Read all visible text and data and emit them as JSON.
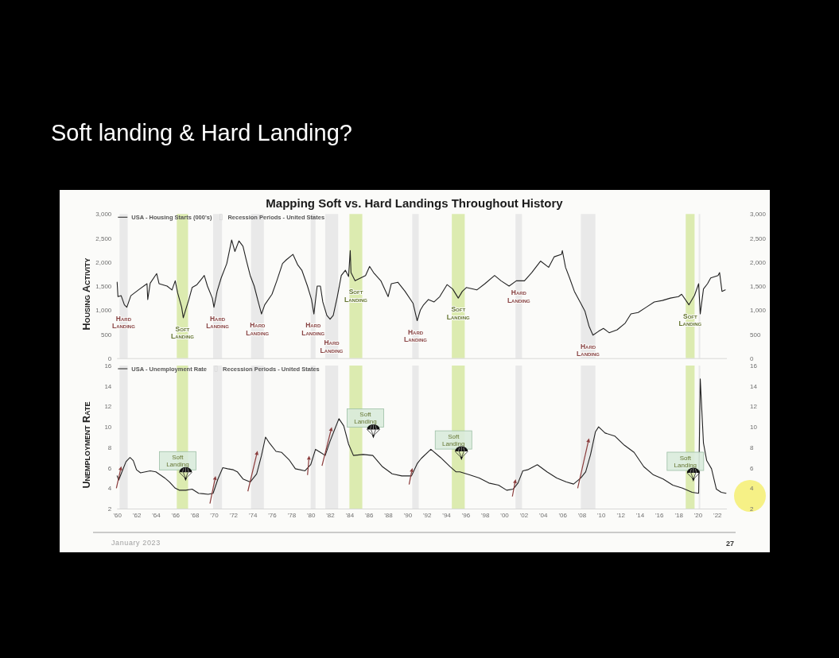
{
  "chart_data": [
    {
      "type": "line",
      "title": "Soft landing & Hard Landing?",
      "subtitle": "Mapping Soft vs. Hard Landings Throughout History",
      "ylabel": "Housing Activity",
      "x": [
        "1960-01",
        "1960-02",
        "1960-06",
        "1960-10",
        "1961-01",
        "1961-06",
        "1962-05",
        "1963-02",
        "1963-03",
        "1963-06",
        "1964-02",
        "1964-05",
        "1965-03",
        "1965-09",
        "1966-01",
        "1966-04",
        "1966-09",
        "1966-11",
        "1967-03",
        "1967-06",
        "1967-10",
        "1968-04",
        "1969-01",
        "1969-05",
        "1969-11",
        "1970-01",
        "1970-05",
        "1970-10",
        "1971-05",
        "1971-11",
        "1972-03",
        "1972-08",
        "1973-01",
        "1973-05",
        "1973-10",
        "1974-03",
        "1974-08",
        "1974-12",
        "1975-04",
        "1976-01",
        "1976-07",
        "1977-02",
        "1977-07",
        "1978-03",
        "1978-09",
        "1979-02",
        "1979-09",
        "1980-02",
        "1980-05",
        "1980-09",
        "1981-01",
        "1981-04",
        "1981-09",
        "1982-01",
        "1982-05",
        "1982-10",
        "1983-03",
        "1983-08",
        "1983-12",
        "1984-02",
        "1984-03",
        "1984-08",
        "1985-03",
        "1985-09",
        "1986-02",
        "1986-07",
        "1987-04",
        "1988-01",
        "1988-05",
        "1989-01",
        "1989-10",
        "1990-08",
        "1991-01",
        "1991-05",
        "1991-09",
        "1992-03",
        "1992-10",
        "1993-05",
        "1994-02",
        "1994-09",
        "1995-04",
        "1995-09",
        "1996-02",
        "1997-03",
        "1998-01",
        "1999-01",
        "1999-09",
        "2000-07",
        "2001-04",
        "2002-02",
        "2002-11",
        "2003-10",
        "2004-08",
        "2005-03",
        "2005-12",
        "2006-01",
        "2006-05",
        "2006-10",
        "2007-04",
        "2007-11",
        "2008-05",
        "2008-10",
        "2009-03",
        "2009-10",
        "2010-04",
        "2010-11",
        "2011-09",
        "2012-07",
        "2013-02",
        "2013-11",
        "2014-09",
        "2015-07",
        "2016-05",
        "2017-03",
        "2018-01",
        "2018-05",
        "2019-02",
        "2019-09",
        "2020-02",
        "2020-04",
        "2020-08",
        "2021-01",
        "2021-05",
        "2022-02",
        "2022-04",
        "2022-07",
        "2022-11"
      ],
      "series": [
        {
          "name": "USA - Housing Starts (000's)",
          "color": "#222222",
          "values": [
            1580,
            1280,
            1300,
            1110,
            1060,
            1300,
            1440,
            1550,
            1220,
            1560,
            1760,
            1550,
            1500,
            1420,
            1610,
            1360,
            1060,
            840,
            1060,
            1220,
            1470,
            1530,
            1720,
            1500,
            1250,
            1060,
            1390,
            1670,
            1970,
            2460,
            2220,
            2440,
            2330,
            2050,
            1720,
            1500,
            1170,
            920,
            1110,
            1330,
            1610,
            1970,
            2050,
            2160,
            1940,
            1830,
            1500,
            1220,
            920,
            1500,
            1500,
            1170,
            890,
            810,
            890,
            1280,
            1720,
            1830,
            1700,
            2240,
            1780,
            1610,
            1670,
            1720,
            1910,
            1780,
            1610,
            1280,
            1550,
            1580,
            1390,
            1140,
            780,
            1000,
            1110,
            1220,
            1170,
            1280,
            1530,
            1440,
            1250,
            1390,
            1470,
            1420,
            1550,
            1720,
            1610,
            1500,
            1610,
            1610,
            1780,
            2020,
            1890,
            2110,
            2160,
            2240,
            1890,
            1670,
            1390,
            1170,
            980,
            670,
            480,
            560,
            620,
            530,
            590,
            730,
            920,
            950,
            1060,
            1170,
            1200,
            1250,
            1280,
            1330,
            1110,
            1310,
            1550,
            920,
            1440,
            1550,
            1670,
            1720,
            1780,
            1390,
            1420
          ]
        }
      ],
      "xlim": [
        "1960-01",
        "2023-01"
      ],
      "ylim": [
        0,
        3000
      ],
      "yticks": [
        0,
        500,
        {
          "value": 1000,
          "label": "1,000"
        },
        {
          "value": 1500,
          "label": "1,500"
        },
        {
          "value": 2000,
          "label": "2,000"
        },
        {
          "value": 2500,
          "label": "2,500"
        },
        {
          "value": 3000,
          "label": "3,000"
        }
      ],
      "y2lim": [
        0,
        3000
      ],
      "y2ticks": [
        0,
        500,
        {
          "value": 1000,
          "label": "1,000"
        },
        {
          "value": 1500,
          "label": "1,500"
        },
        {
          "value": 2000,
          "label": "2,000"
        },
        {
          "value": 2500,
          "label": "2,500"
        },
        {
          "value": 3000,
          "label": "3,000"
        }
      ],
      "tick_labels": "y",
      "legend": "top left",
      "bands": [
        {
          "axis": "x",
          "from": "1960-04",
          "to": "1961-02",
          "color": "#e9e9e9",
          "label": "Hard Landing"
        },
        {
          "axis": "x",
          "from": "1966-03",
          "to": "1967-05",
          "color": "#dcebb0",
          "label": "Soft Landing"
        },
        {
          "axis": "x",
          "from": "1969-12",
          "to": "1970-11",
          "color": "#e9e9e9",
          "label": "Hard Landing"
        },
        {
          "axis": "x",
          "from": "1973-11",
          "to": "1975-03",
          "color": "#e9e9e9",
          "label": "Hard Landing"
        },
        {
          "axis": "x",
          "from": "1980-01",
          "to": "1980-07",
          "color": "#e9e9e9",
          "label": "Hard Landing"
        },
        {
          "axis": "x",
          "from": "1981-07",
          "to": "1982-11",
          "color": "#e9e9e9",
          "label": "Hard Landing"
        },
        {
          "axis": "x",
          "from": "1984-01",
          "to": "1985-05",
          "color": "#dcebb0",
          "label": "Soft Landing"
        },
        {
          "axis": "x",
          "from": "1990-07",
          "to": "1991-03",
          "color": "#e9e9e9",
          "label": "Hard Landing"
        },
        {
          "axis": "x",
          "from": "1994-08",
          "to": "1995-12",
          "color": "#dcebb0",
          "label": "Soft Landing"
        },
        {
          "axis": "x",
          "from": "2001-03",
          "to": "2001-11",
          "color": "#e9e9e9",
          "label": "Hard Landing"
        },
        {
          "axis": "x",
          "from": "2007-12",
          "to": "2009-06",
          "color": "#e9e9e9",
          "label": "Hard Landing"
        },
        {
          "axis": "x",
          "from": "2018-10",
          "to": "2019-09",
          "color": "#dcebb0",
          "label": "Soft Landing"
        },
        {
          "axis": "x",
          "from": "2020-02",
          "to": "2020-04",
          "color": "#e9e9e9"
        }
      ],
      "annotations": [
        "Recession Periods - United States"
      ]
    },
    {
      "type": "line",
      "ylabel": "Unemployment Rate",
      "x": [
        "1960-01",
        "1960-03",
        "1960-06",
        "1960-12",
        "1961-05",
        "1961-09",
        "1962-01",
        "1962-06",
        "1963-06",
        "1964-01",
        "1964-12",
        "1965-06",
        "1966-01",
        "1966-06",
        "1967-02",
        "1967-10",
        "1968-06",
        "1969-06",
        "1969-12",
        "1970-06",
        "1970-12",
        "1971-06",
        "1972-01",
        "1972-06",
        "1973-01",
        "1973-10",
        "1974-06",
        "1974-12",
        "1975-05",
        "1975-10",
        "1976-06",
        "1977-01",
        "1977-10",
        "1978-06",
        "1979-06",
        "1980-01",
        "1980-07",
        "1981-01",
        "1981-07",
        "1982-01",
        "1982-06",
        "1982-12",
        "1983-06",
        "1983-12",
        "1984-06",
        "1985-06",
        "1986-06",
        "1987-06",
        "1988-06",
        "1989-06",
        "1990-06",
        "1991-01",
        "1991-06",
        "1992-06",
        "1993-06",
        "1994-06",
        "1995-01",
        "1995-06",
        "1996-06",
        "1997-06",
        "1998-06",
        "1999-06",
        "2000-04",
        "2000-12",
        "2001-06",
        "2001-12",
        "2002-06",
        "2003-06",
        "2004-06",
        "2005-06",
        "2006-06",
        "2007-03",
        "2007-12",
        "2008-06",
        "2008-12",
        "2009-06",
        "2009-10",
        "2010-06",
        "2011-06",
        "2012-06",
        "2013-06",
        "2014-06",
        "2015-06",
        "2016-06",
        "2017-06",
        "2018-06",
        "2019-06",
        "2020-02",
        "2020-04",
        "2020-08",
        "2020-12",
        "2021-06",
        "2021-12",
        "2022-06",
        "2022-12"
      ],
      "series": [
        {
          "name": "USA - Unemployment Rate",
          "color": "#222222",
          "values": [
            5.2,
            4.8,
            5.4,
            6.6,
            7.0,
            6.7,
            5.8,
            5.5,
            5.7,
            5.6,
            5.0,
            4.6,
            4.0,
            3.8,
            3.8,
            3.9,
            3.5,
            3.4,
            3.5,
            4.9,
            6.0,
            5.9,
            5.8,
            5.6,
            4.9,
            4.6,
            5.4,
            7.2,
            9.0,
            8.4,
            7.6,
            7.5,
            6.8,
            5.9,
            5.7,
            6.3,
            7.8,
            7.5,
            7.2,
            8.6,
            9.6,
            10.8,
            10.1,
            8.3,
            7.2,
            7.3,
            7.2,
            6.1,
            5.4,
            5.2,
            5.2,
            6.4,
            6.9,
            7.8,
            7.0,
            6.1,
            5.6,
            5.6,
            5.3,
            5.0,
            4.5,
            4.3,
            3.8,
            3.9,
            4.5,
            5.7,
            5.8,
            6.3,
            5.6,
            5.0,
            4.6,
            4.4,
            5.0,
            5.6,
            7.3,
            9.5,
            10.0,
            9.4,
            9.1,
            8.2,
            7.5,
            6.1,
            5.3,
            4.9,
            4.3,
            4.0,
            3.6,
            3.5,
            14.7,
            8.4,
            6.7,
            5.9,
            3.9,
            3.6,
            3.5
          ]
        }
      ],
      "xlim": [
        "1960-01",
        "2023-01"
      ],
      "xticks": [
        {
          "value": "1960",
          "label": "'60"
        },
        {
          "value": "1962",
          "label": "'62"
        },
        {
          "value": "1964",
          "label": "'64"
        },
        {
          "value": "1966",
          "label": "'66"
        },
        {
          "value": "1968",
          "label": "'68"
        },
        {
          "value": "1970",
          "label": "'70"
        },
        {
          "value": "1972",
          "label": "'72"
        },
        {
          "value": "1974",
          "label": "'74"
        },
        {
          "value": "1976",
          "label": "'76"
        },
        {
          "value": "1978",
          "label": "'78"
        },
        {
          "value": "1980",
          "label": "'80"
        },
        {
          "value": "1982",
          "label": "'82"
        },
        {
          "value": "1984",
          "label": "'84"
        },
        {
          "value": "1986",
          "label": "'86"
        },
        {
          "value": "1988",
          "label": "'88"
        },
        {
          "value": "1990",
          "label": "'90"
        },
        {
          "value": "1992",
          "label": "'92"
        },
        {
          "value": "1994",
          "label": "'94"
        },
        {
          "value": "1996",
          "label": "'96"
        },
        {
          "value": "1998",
          "label": "'98"
        },
        {
          "value": "2000",
          "label": "'00"
        },
        {
          "value": "2002",
          "label": "'02"
        },
        {
          "value": "2004",
          "label": "'04"
        },
        {
          "value": "2006",
          "label": "'06"
        },
        {
          "value": "2008",
          "label": "'08"
        },
        {
          "value": "2010",
          "label": "'10"
        },
        {
          "value": "2012",
          "label": "'12"
        },
        {
          "value": "2014",
          "label": "'14"
        },
        {
          "value": "2016",
          "label": "'16"
        },
        {
          "value": "2018",
          "label": "'18"
        },
        {
          "value": "2020",
          "label": "'20"
        },
        {
          "value": "2022",
          "label": "'22"
        }
      ],
      "ylim": [
        2,
        16
      ],
      "yticks": [
        2,
        4,
        6,
        8,
        10,
        12,
        14,
        16
      ],
      "y2lim": [
        2,
        16
      ],
      "y2ticks": [
        2,
        4,
        6,
        8,
        10,
        12,
        14,
        16
      ],
      "legend": "top left",
      "bands": [
        {
          "axis": "x",
          "from": "1960-04",
          "to": "1961-02",
          "color": "#e9e9e9"
        },
        {
          "axis": "x",
          "from": "1966-03",
          "to": "1967-05",
          "color": "#dcebb0",
          "label": "Soft Landing"
        },
        {
          "axis": "x",
          "from": "1969-12",
          "to": "1970-11",
          "color": "#e9e9e9"
        },
        {
          "axis": "x",
          "from": "1973-11",
          "to": "1975-03",
          "color": "#e9e9e9"
        },
        {
          "axis": "x",
          "from": "1980-01",
          "to": "1980-07",
          "color": "#e9e9e9"
        },
        {
          "axis": "x",
          "from": "1981-07",
          "to": "1982-11",
          "color": "#e9e9e9"
        },
        {
          "axis": "x",
          "from": "1984-01",
          "to": "1985-05",
          "color": "#dcebb0",
          "label": "Soft Landing"
        },
        {
          "axis": "x",
          "from": "1990-07",
          "to": "1991-03",
          "color": "#e9e9e9"
        },
        {
          "axis": "x",
          "from": "1994-08",
          "to": "1995-12",
          "color": "#dcebb0",
          "label": "Soft Landing"
        },
        {
          "axis": "x",
          "from": "2001-03",
          "to": "2001-11",
          "color": "#e9e9e9"
        },
        {
          "axis": "x",
          "from": "2007-12",
          "to": "2009-06",
          "color": "#e9e9e9"
        },
        {
          "axis": "x",
          "from": "2018-10",
          "to": "2019-09",
          "color": "#dcebb0",
          "label": "Soft Landing"
        },
        {
          "axis": "x",
          "from": "2020-02",
          "to": "2020-04",
          "color": "#e9e9e9"
        }
      ],
      "annotations": [
        "Recession Periods - United States",
        "January 2023",
        "27"
      ]
    }
  ]
}
